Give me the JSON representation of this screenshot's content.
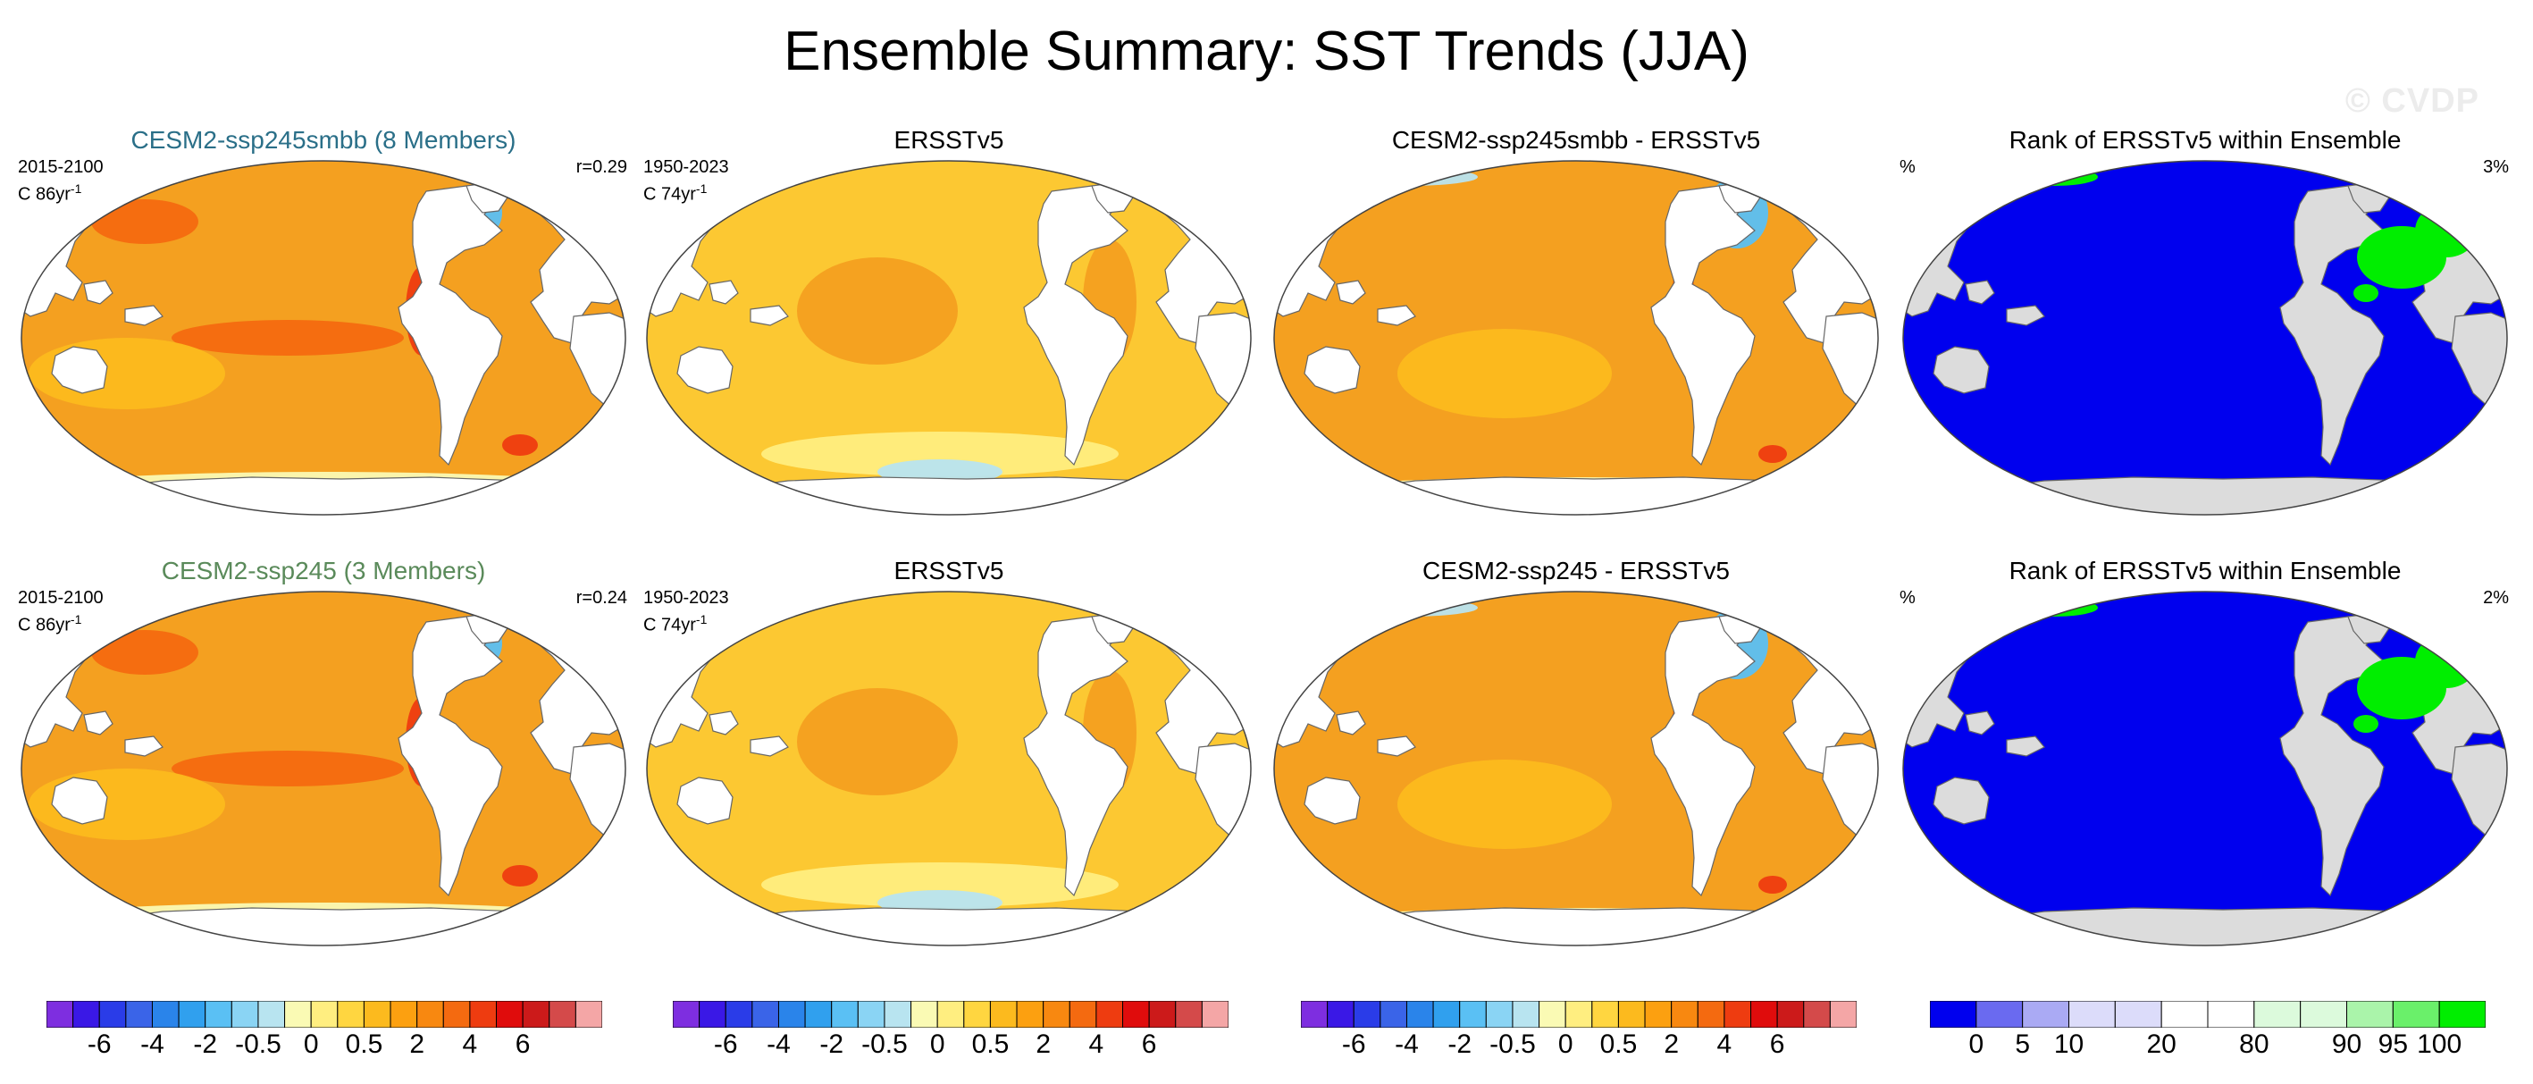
{
  "title": "Ensemble Summary: SST Trends (JJA)",
  "watermark": "© CVDP",
  "panels": [
    {
      "title": "CESM2-ssp245smbb (8 Members)",
      "title_color": "#2a6f88",
      "left_line1": "2015-2100",
      "left_line2": "C 86yr",
      "sup": "-1",
      "right": "r=0.29",
      "kind": "model"
    },
    {
      "title": "ERSSTv5",
      "title_color": "#000000",
      "left_line1": "1950-2023",
      "left_line2": "C 74yr",
      "sup": "-1",
      "right": "",
      "kind": "obs"
    },
    {
      "title": "CESM2-ssp245smbb - ERSSTv5",
      "title_color": "#000000",
      "left_line1": "",
      "left_line2": "",
      "sup": "",
      "right": "",
      "kind": "diff"
    },
    {
      "title": "Rank of ERSSTv5 within Ensemble",
      "title_color": "#000000",
      "left_line1": "%",
      "left_line2": "",
      "sup": "",
      "right": "3%",
      "kind": "rank"
    },
    {
      "title": "CESM2-ssp245 (3 Members)",
      "title_color": "#5a8a5a",
      "left_line1": "2015-2100",
      "left_line2": "C 86yr",
      "sup": "-1",
      "right": "r=0.24",
      "kind": "model"
    },
    {
      "title": "ERSSTv5",
      "title_color": "#000000",
      "left_line1": "1950-2023",
      "left_line2": "C 74yr",
      "sup": "-1",
      "right": "",
      "kind": "obs"
    },
    {
      "title": "CESM2-ssp245 - ERSSTv5",
      "title_color": "#000000",
      "left_line1": "",
      "left_line2": "",
      "sup": "",
      "right": "",
      "kind": "diff"
    },
    {
      "title": "Rank of ERSSTv5 within Ensemble",
      "title_color": "#000000",
      "left_line1": "%",
      "left_line2": "",
      "sup": "",
      "right": "2%",
      "kind": "rank"
    }
  ],
  "trend_colorbar": {
    "colors": [
      "#7e2ee0",
      "#3a18e6",
      "#2a3ce8",
      "#3a64e8",
      "#2a84ea",
      "#30a0ee",
      "#5ac0f4",
      "#8ad4f4",
      "#b8e4f0",
      "#fafab4",
      "#ffee80",
      "#ffd640",
      "#fcba1e",
      "#fca010",
      "#f88810",
      "#f46a10",
      "#ee3c10",
      "#e00c0c",
      "#cc1a1a",
      "#d44a4a",
      "#f4a6a6"
    ],
    "labels": [
      "-6",
      "-4",
      "-2",
      "-0.5",
      "0",
      "0.5",
      "2",
      "4",
      "6"
    ],
    "label_boundaries": [
      2,
      4,
      6,
      8,
      10,
      12,
      14,
      16,
      18
    ]
  },
  "rank_colorbar": {
    "colors": [
      "#0000ee",
      "#6a6af0",
      "#aaaaf4",
      "#dcdcfa",
      "#dcdcfa",
      "#ffffff",
      "#ffffff",
      "#dcfadc",
      "#dcfadc",
      "#aaf4aa",
      "#6af06a",
      "#00ee00"
    ],
    "labels": [
      "0",
      "5",
      "10",
      "20",
      "80",
      "90",
      "95",
      "100"
    ],
    "label_boundaries": [
      1,
      2,
      3,
      5,
      7,
      9,
      10,
      11
    ]
  },
  "colors": {
    "ocean_model": "#f4a020",
    "ocean_obs": "#fcc832",
    "land": "#ffffff",
    "rank_ocean": "#0000ee",
    "rank_land": "#dcdcdc",
    "rank_high": "#00ee00"
  }
}
